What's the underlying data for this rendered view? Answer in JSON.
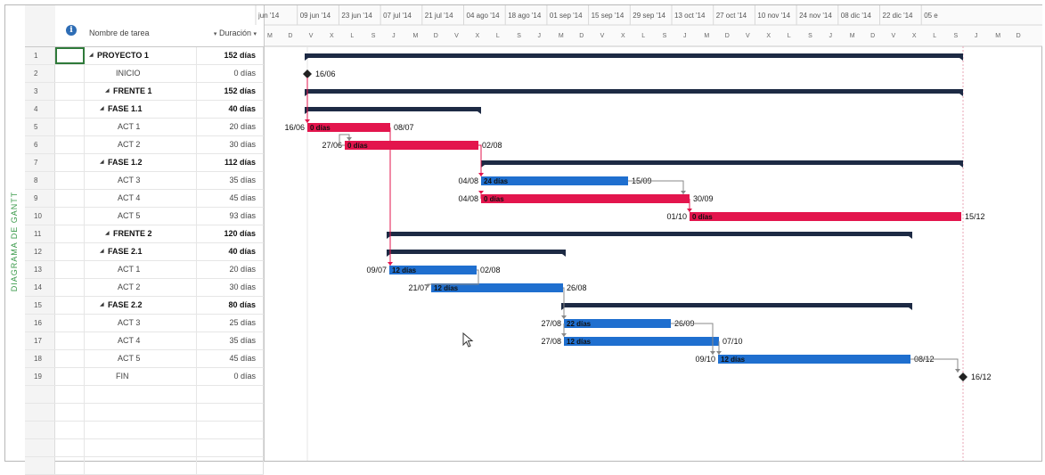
{
  "view": {
    "side_title": "DIAGRAMA DE GANTT"
  },
  "table": {
    "headers": {
      "info": "i",
      "name": "Nombre de tarea",
      "duration": "Duración"
    },
    "rows": [
      {
        "id": "1",
        "name": "PROYECTO 1",
        "duration": "152 días",
        "level": 0,
        "summary": true
      },
      {
        "id": "2",
        "name": "INICIO",
        "duration": "0 días",
        "level": 1,
        "summary": false
      },
      {
        "id": "3",
        "name": "FRENTE 1",
        "duration": "152 días",
        "level": 1,
        "summary": true
      },
      {
        "id": "4",
        "name": "FASE 1.1",
        "duration": "40 días",
        "level": 2,
        "summary": true
      },
      {
        "id": "5",
        "name": "ACT 1",
        "duration": "20 días",
        "level": 3,
        "summary": false
      },
      {
        "id": "6",
        "name": "ACT 2",
        "duration": "30 días",
        "level": 3,
        "summary": false
      },
      {
        "id": "7",
        "name": "FASE 1.2",
        "duration": "112 días",
        "level": 2,
        "summary": true
      },
      {
        "id": "8",
        "name": "ACT 3",
        "duration": "35 días",
        "level": 3,
        "summary": false
      },
      {
        "id": "9",
        "name": "ACT 4",
        "duration": "45 días",
        "level": 3,
        "summary": false
      },
      {
        "id": "10",
        "name": "ACT 5",
        "duration": "93 días",
        "level": 3,
        "summary": false
      },
      {
        "id": "11",
        "name": "FRENTE 2",
        "duration": "120 días",
        "level": 1,
        "summary": true
      },
      {
        "id": "12",
        "name": "FASE 2.1",
        "duration": "40 días",
        "level": 2,
        "summary": true
      },
      {
        "id": "13",
        "name": "ACT 1",
        "duration": "20 días",
        "level": 3,
        "summary": false
      },
      {
        "id": "14",
        "name": "ACT 2",
        "duration": "30 días",
        "level": 3,
        "summary": false
      },
      {
        "id": "15",
        "name": "FASE 2.2",
        "duration": "80 días",
        "level": 2,
        "summary": true
      },
      {
        "id": "16",
        "name": "ACT 3",
        "duration": "25 días",
        "level": 3,
        "summary": false
      },
      {
        "id": "17",
        "name": "ACT 4",
        "duration": "35 días",
        "level": 3,
        "summary": false
      },
      {
        "id": "18",
        "name": "ACT 5",
        "duration": "45 días",
        "level": 3,
        "summary": false
      },
      {
        "id": "19",
        "name": "FIN",
        "duration": "0 días",
        "level": 1,
        "summary": false
      }
    ]
  },
  "timescale": {
    "weeks": [
      "jun '14",
      "09 jun '14",
      "23 jun '14",
      "07 jul '14",
      "21 jul '14",
      "04 ago '14",
      "18 ago '14",
      "01 sep '14",
      "15 sep '14",
      "29 sep '14",
      "13 oct '14",
      "27 oct '14",
      "10 nov '14",
      "24 nov '14",
      "08 dic '14",
      "22 dic '14",
      "05 e"
    ],
    "days": [
      "M",
      "D",
      "V",
      "X",
      "L",
      "S",
      "J",
      "M",
      "D",
      "V",
      "X",
      "L",
      "S",
      "J",
      "M",
      "D",
      "V",
      "X",
      "L",
      "S",
      "J",
      "M",
      "D",
      "V",
      "X",
      "L",
      "S",
      "J",
      "M",
      "D",
      "V",
      "X",
      "L",
      "S",
      "J",
      "M",
      "D"
    ]
  },
  "colors": {
    "critical": "#e3154d",
    "normal": "#1f6fcf",
    "summary": "#1d2a44",
    "link_critical": "#e3154d",
    "link_normal": "#888888"
  },
  "bars": [
    {
      "row": 0,
      "kind": "summary"
    },
    {
      "row": 1,
      "kind": "milestone",
      "right": "16/06"
    },
    {
      "row": 2,
      "kind": "summary"
    },
    {
      "row": 3,
      "kind": "summary"
    },
    {
      "row": 4,
      "kind": "critical",
      "left": "16/06",
      "inner": "0 días",
      "right": "08/07"
    },
    {
      "row": 5,
      "kind": "critical",
      "left": "27/06",
      "inner": "0 días",
      "right": "02/08"
    },
    {
      "row": 6,
      "kind": "summary"
    },
    {
      "row": 7,
      "kind": "normal",
      "left": "04/08",
      "inner": "24 días",
      "right": "15/09"
    },
    {
      "row": 8,
      "kind": "critical",
      "left": "04/08",
      "inner": "0 días",
      "right": "30/09"
    },
    {
      "row": 9,
      "kind": "critical",
      "left": "01/10",
      "inner": "0 días",
      "right": "15/12"
    },
    {
      "row": 10,
      "kind": "summary"
    },
    {
      "row": 11,
      "kind": "summary"
    },
    {
      "row": 12,
      "kind": "normal",
      "left": "09/07",
      "inner": "12 días",
      "right": "02/08"
    },
    {
      "row": 13,
      "kind": "normal",
      "left": "21/07",
      "inner": "12 días",
      "right": "26/08"
    },
    {
      "row": 14,
      "kind": "summary"
    },
    {
      "row": 15,
      "kind": "normal",
      "left": "27/08",
      "inner": "22 días",
      "right": "26/09"
    },
    {
      "row": 16,
      "kind": "normal",
      "left": "27/08",
      "inner": "12 días",
      "right": "07/10"
    },
    {
      "row": 17,
      "kind": "normal",
      "left": "09/10",
      "inner": "12 días",
      "right": "08/12"
    },
    {
      "row": 18,
      "kind": "milestone",
      "right": "16/12"
    }
  ]
}
